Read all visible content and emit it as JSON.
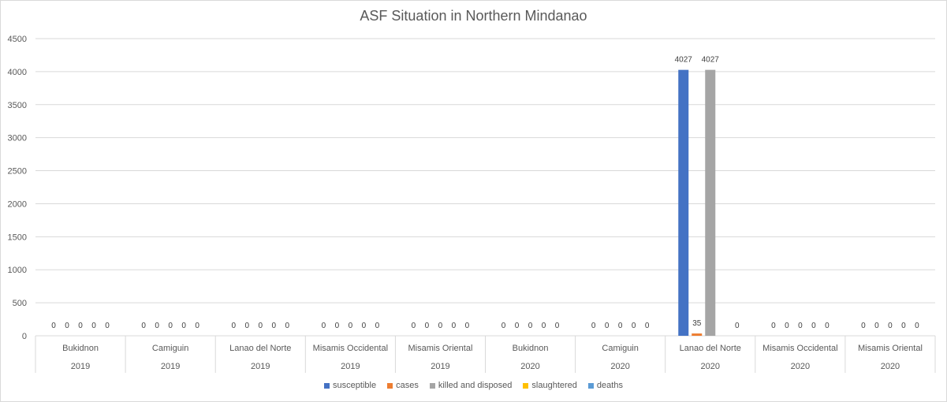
{
  "chart_data": {
    "type": "bar",
    "title": "ASF Situation in Northern Mindanao",
    "xlabel": "",
    "ylabel": "",
    "ylim": [
      0,
      4500
    ],
    "yticks": [
      0,
      500,
      1000,
      1500,
      2000,
      2500,
      3000,
      3500,
      4000,
      4500
    ],
    "grid": true,
    "legend_position": "bottom",
    "categories": [
      {
        "province": "Bukidnon",
        "year": "2019"
      },
      {
        "province": "Camiguin",
        "year": "2019"
      },
      {
        "province": "Lanao del Norte",
        "year": "2019"
      },
      {
        "province": "Misamis Occidental",
        "year": "2019"
      },
      {
        "province": "Misamis Oriental",
        "year": "2019"
      },
      {
        "province": "Bukidnon",
        "year": "2020"
      },
      {
        "province": "Camiguin",
        "year": "2020"
      },
      {
        "province": "Lanao del Norte",
        "year": "2020"
      },
      {
        "province": "Misamis Occidental",
        "year": "2020"
      },
      {
        "province": "Misamis Oriental",
        "year": "2020"
      }
    ],
    "series": [
      {
        "name": "susceptible",
        "color": "#4472c4",
        "values": [
          0,
          0,
          0,
          0,
          0,
          0,
          0,
          4027,
          0,
          0
        ]
      },
      {
        "name": "cases",
        "color": "#ed7d31",
        "values": [
          0,
          0,
          0,
          0,
          0,
          0,
          0,
          35,
          0,
          0
        ]
      },
      {
        "name": "killed and disposed",
        "color": "#a5a5a5",
        "values": [
          0,
          0,
          0,
          0,
          0,
          0,
          0,
          4027,
          0,
          0
        ]
      },
      {
        "name": "slaughtered",
        "color": "#ffc000",
        "values": [
          0,
          0,
          0,
          0,
          0,
          0,
          0,
          null,
          0,
          0
        ]
      },
      {
        "name": "deaths",
        "color": "#5b9bd5",
        "values": [
          0,
          0,
          0,
          0,
          0,
          0,
          0,
          0,
          0,
          0
        ]
      }
    ]
  }
}
